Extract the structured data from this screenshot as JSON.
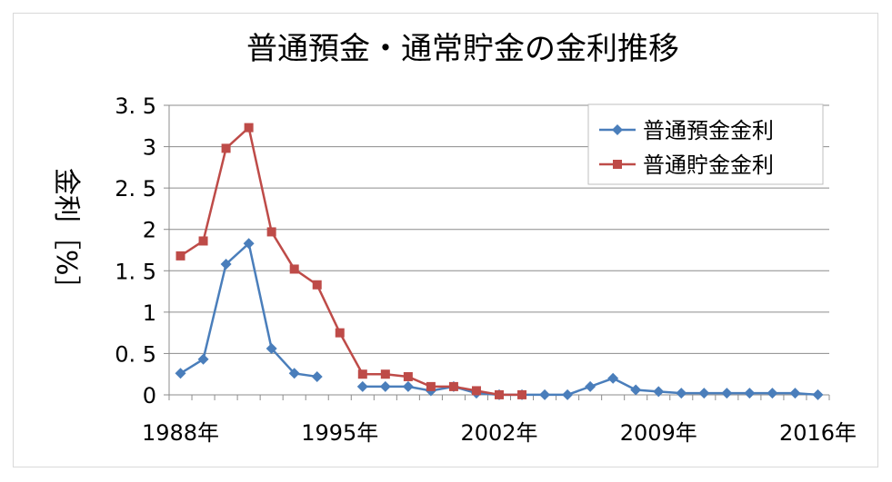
{
  "chart_data": {
    "type": "line",
    "title": "普通預金・通常貯金の金利推移",
    "xlabel": "",
    "ylabel": "金利［%］",
    "x": [
      1988,
      1989,
      1990,
      1991,
      1992,
      1993,
      1994,
      1995,
      1996,
      1997,
      1998,
      1999,
      2000,
      2001,
      2002,
      2003,
      2004,
      2005,
      2006,
      2007,
      2008,
      2009,
      2010,
      2011,
      2012,
      2013,
      2014,
      2015,
      2016
    ],
    "xticks": [
      1988,
      1995,
      2002,
      2009,
      2016
    ],
    "xtick_labels": [
      "1988年",
      "1995年",
      "2002年",
      "2009年",
      "2016年"
    ],
    "xlim": [
      1987.5,
      2016.5
    ],
    "ylim": [
      0,
      3.5
    ],
    "yticks": [
      0,
      0.5,
      1,
      1.5,
      2,
      2.5,
      3,
      3.5
    ],
    "ytick_labels": [
      "0",
      "0. 5",
      "1",
      "1. 5",
      "2",
      "2. 5",
      "3",
      "3. 5"
    ],
    "grid": true,
    "legend_position": "top-right",
    "series": [
      {
        "name": "普通預金金利",
        "color": "#4a7ebb",
        "marker": "diamond",
        "values": [
          0.26,
          0.43,
          1.58,
          1.83,
          0.56,
          0.26,
          0.22,
          null,
          0.1,
          0.1,
          0.1,
          0.05,
          0.1,
          0.02,
          0.001,
          0.001,
          0.001,
          0.001,
          0.1,
          0.2,
          0.06,
          0.04,
          0.02,
          0.02,
          0.02,
          0.02,
          0.02,
          0.02,
          0.001
        ]
      },
      {
        "name": "普通貯金金利",
        "color": "#be4b48",
        "marker": "square",
        "values": [
          1.68,
          1.86,
          2.98,
          3.23,
          1.97,
          1.52,
          1.33,
          0.75,
          0.25,
          0.25,
          0.22,
          0.1,
          0.1,
          0.05,
          0.001,
          0.001,
          null,
          null,
          null,
          null,
          null,
          null,
          null,
          null,
          null,
          null,
          null,
          null,
          null
        ]
      }
    ]
  }
}
